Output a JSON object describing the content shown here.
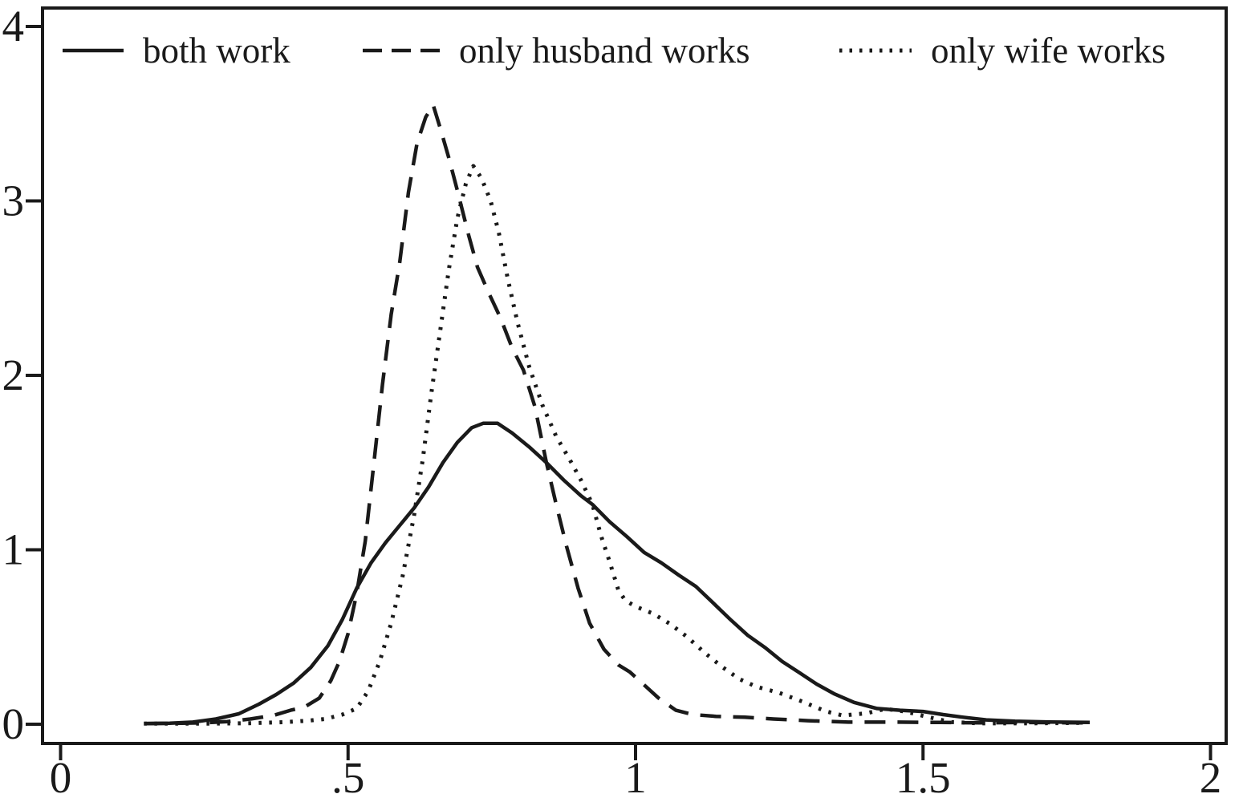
{
  "figure": {
    "background": "#ffffff",
    "line_color": "#1a1a1a"
  },
  "legend": {
    "items": [
      {
        "label": "both work",
        "style": "solid"
      },
      {
        "label": "only husband works",
        "style": "dashed"
      },
      {
        "label": "only wife works",
        "style": "dotted"
      }
    ]
  },
  "chart_data": {
    "type": "line",
    "title": "",
    "xlabel": "",
    "ylabel": "",
    "xlim": [
      0,
      2
    ],
    "ylim": [
      0,
      4
    ],
    "grid": false,
    "legend_position": "top-inside",
    "x_ticks": [
      "0",
      ".5",
      "1",
      "1.5",
      "2"
    ],
    "x_tick_values": [
      0,
      0.5,
      1,
      1.5,
      2
    ],
    "y_ticks": [
      "0",
      "1",
      "2",
      "3",
      "4"
    ],
    "y_tick_values": [
      0,
      1,
      2,
      3,
      4
    ],
    "series": [
      {
        "name": "both work",
        "style": "solid",
        "points": [
          [
            0.145,
            0.004
          ],
          [
            0.19,
            0.006
          ],
          [
            0.23,
            0.012
          ],
          [
            0.27,
            0.03
          ],
          [
            0.31,
            0.06
          ],
          [
            0.345,
            0.115
          ],
          [
            0.375,
            0.17
          ],
          [
            0.405,
            0.235
          ],
          [
            0.435,
            0.325
          ],
          [
            0.465,
            0.45
          ],
          [
            0.49,
            0.6
          ],
          [
            0.515,
            0.78
          ],
          [
            0.54,
            0.925
          ],
          [
            0.565,
            1.04
          ],
          [
            0.59,
            1.14
          ],
          [
            0.615,
            1.24
          ],
          [
            0.64,
            1.36
          ],
          [
            0.665,
            1.5
          ],
          [
            0.69,
            1.615
          ],
          [
            0.715,
            1.7
          ],
          [
            0.735,
            1.725
          ],
          [
            0.76,
            1.725
          ],
          [
            0.785,
            1.67
          ],
          [
            0.815,
            1.59
          ],
          [
            0.845,
            1.5
          ],
          [
            0.875,
            1.4
          ],
          [
            0.905,
            1.31
          ],
          [
            0.925,
            1.26
          ],
          [
            0.955,
            1.16
          ],
          [
            0.985,
            1.075
          ],
          [
            1.015,
            0.985
          ],
          [
            1.045,
            0.925
          ],
          [
            1.075,
            0.855
          ],
          [
            1.105,
            0.79
          ],
          [
            1.135,
            0.695
          ],
          [
            1.165,
            0.6
          ],
          [
            1.195,
            0.51
          ],
          [
            1.225,
            0.44
          ],
          [
            1.255,
            0.36
          ],
          [
            1.285,
            0.295
          ],
          [
            1.315,
            0.23
          ],
          [
            1.345,
            0.175
          ],
          [
            1.38,
            0.125
          ],
          [
            1.42,
            0.09
          ],
          [
            1.46,
            0.08
          ],
          [
            1.5,
            0.073
          ],
          [
            1.535,
            0.055
          ],
          [
            1.57,
            0.04
          ],
          [
            1.61,
            0.025
          ],
          [
            1.66,
            0.017
          ],
          [
            1.72,
            0.013
          ],
          [
            1.79,
            0.01
          ]
        ]
      },
      {
        "name": "only husband works",
        "style": "dashed",
        "points": [
          [
            0.145,
            0.003
          ],
          [
            0.2,
            0.005
          ],
          [
            0.25,
            0.008
          ],
          [
            0.29,
            0.015
          ],
          [
            0.33,
            0.03
          ],
          [
            0.37,
            0.05
          ],
          [
            0.4,
            0.08
          ],
          [
            0.425,
            0.1
          ],
          [
            0.45,
            0.15
          ],
          [
            0.47,
            0.25
          ],
          [
            0.485,
            0.36
          ],
          [
            0.5,
            0.52
          ],
          [
            0.515,
            0.75
          ],
          [
            0.53,
            1.05
          ],
          [
            0.545,
            1.5
          ],
          [
            0.56,
            1.95
          ],
          [
            0.575,
            2.35
          ],
          [
            0.59,
            2.65
          ],
          [
            0.605,
            3.05
          ],
          [
            0.62,
            3.33
          ],
          [
            0.635,
            3.48
          ],
          [
            0.648,
            3.55
          ],
          [
            0.66,
            3.42
          ],
          [
            0.675,
            3.25
          ],
          [
            0.69,
            3.06
          ],
          [
            0.71,
            2.8
          ],
          [
            0.725,
            2.62
          ],
          [
            0.745,
            2.47
          ],
          [
            0.765,
            2.33
          ],
          [
            0.785,
            2.16
          ],
          [
            0.805,
            2.03
          ],
          [
            0.825,
            1.82
          ],
          [
            0.845,
            1.5
          ],
          [
            0.862,
            1.26
          ],
          [
            0.88,
            1.02
          ],
          [
            0.9,
            0.78
          ],
          [
            0.92,
            0.58
          ],
          [
            0.945,
            0.43
          ],
          [
            0.97,
            0.34
          ],
          [
            0.99,
            0.3
          ],
          [
            1.01,
            0.24
          ],
          [
            1.04,
            0.15
          ],
          [
            1.07,
            0.08
          ],
          [
            1.1,
            0.055
          ],
          [
            1.14,
            0.045
          ],
          [
            1.19,
            0.04
          ],
          [
            1.24,
            0.03
          ],
          [
            1.3,
            0.02
          ],
          [
            1.37,
            0.012
          ],
          [
            1.45,
            0.012
          ],
          [
            1.53,
            0.01
          ],
          [
            1.6,
            0.008
          ],
          [
            1.68,
            0.01
          ],
          [
            1.78,
            0.008
          ]
        ]
      },
      {
        "name": "only wife works",
        "style": "dotted",
        "points": [
          [
            0.145,
            0.003
          ],
          [
            0.25,
            0.003
          ],
          [
            0.33,
            0.006
          ],
          [
            0.39,
            0.012
          ],
          [
            0.43,
            0.02
          ],
          [
            0.46,
            0.03
          ],
          [
            0.49,
            0.055
          ],
          [
            0.515,
            0.09
          ],
          [
            0.535,
            0.19
          ],
          [
            0.555,
            0.36
          ],
          [
            0.575,
            0.58
          ],
          [
            0.595,
            0.85
          ],
          [
            0.615,
            1.2
          ],
          [
            0.63,
            1.52
          ],
          [
            0.645,
            1.9
          ],
          [
            0.66,
            2.25
          ],
          [
            0.675,
            2.6
          ],
          [
            0.69,
            2.9
          ],
          [
            0.705,
            3.1
          ],
          [
            0.718,
            3.2
          ],
          [
            0.732,
            3.13
          ],
          [
            0.748,
            3.0
          ],
          [
            0.762,
            2.82
          ],
          [
            0.778,
            2.55
          ],
          [
            0.795,
            2.3
          ],
          [
            0.815,
            2.05
          ],
          [
            0.838,
            1.83
          ],
          [
            0.862,
            1.65
          ],
          [
            0.885,
            1.52
          ],
          [
            0.905,
            1.4
          ],
          [
            0.925,
            1.26
          ],
          [
            0.94,
            1.08
          ],
          [
            0.955,
            0.93
          ],
          [
            0.97,
            0.77
          ],
          [
            0.982,
            0.71
          ],
          [
            1.0,
            0.675
          ],
          [
            1.03,
            0.635
          ],
          [
            1.06,
            0.575
          ],
          [
            1.09,
            0.5
          ],
          [
            1.12,
            0.41
          ],
          [
            1.15,
            0.33
          ],
          [
            1.18,
            0.26
          ],
          [
            1.21,
            0.215
          ],
          [
            1.25,
            0.18
          ],
          [
            1.29,
            0.13
          ],
          [
            1.33,
            0.075
          ],
          [
            1.36,
            0.05
          ],
          [
            1.4,
            0.062
          ],
          [
            1.435,
            0.088
          ],
          [
            1.47,
            0.072
          ],
          [
            1.51,
            0.04
          ],
          [
            1.55,
            0.012
          ],
          [
            1.6,
            0.005
          ],
          [
            1.68,
            0.005
          ],
          [
            1.78,
            0.008
          ]
        ]
      }
    ]
  }
}
